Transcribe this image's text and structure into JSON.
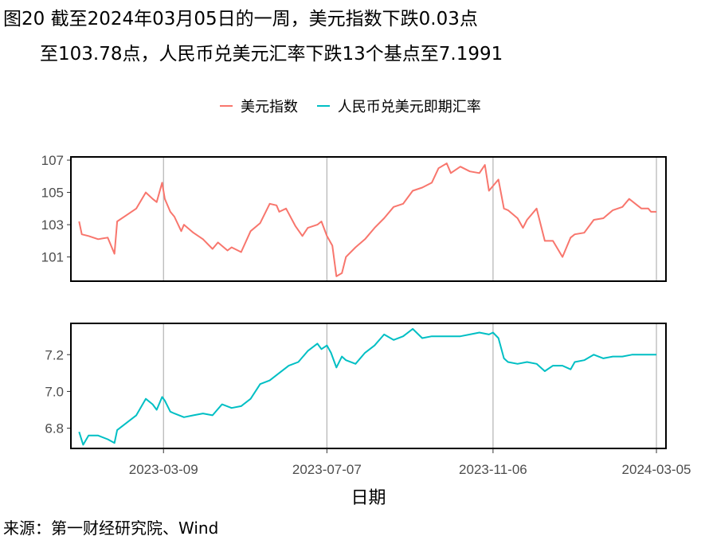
{
  "figure": {
    "title_line1": "图20  截至2024年03月05日的一周，美元指数下跌0.03点",
    "title_line2": "至103.78点，人民币兑美元汇率下跌13个基点至7.1991",
    "source": "来源：第一财经研究院、Wind"
  },
  "legend": [
    {
      "label": "美元指数",
      "color": "#F8766D"
    },
    {
      "label": "人民币兑美元即期汇率",
      "color": "#00BFC4"
    }
  ],
  "chart_data": [
    {
      "type": "line",
      "series": [
        {
          "name": "美元指数",
          "color": "#F8766D",
          "x": [
            "2023-01-06",
            "2023-01-08",
            "2023-01-13",
            "2023-01-20",
            "2023-01-27",
            "2023-02-01",
            "2023-02-03",
            "2023-02-10",
            "2023-02-17",
            "2023-02-24",
            "2023-03-01",
            "2023-03-04",
            "2023-03-08",
            "2023-03-10",
            "2023-03-14",
            "2023-03-17",
            "2023-03-22",
            "2023-03-24",
            "2023-03-31",
            "2023-04-07",
            "2023-04-14",
            "2023-04-18",
            "2023-04-25",
            "2023-04-28",
            "2023-05-05",
            "2023-05-12",
            "2023-05-19",
            "2023-05-26",
            "2023-05-31",
            "2023-06-02",
            "2023-06-07",
            "2023-06-14",
            "2023-06-19",
            "2023-06-23",
            "2023-06-30",
            "2023-07-03",
            "2023-07-07",
            "2023-07-11",
            "2023-07-14",
            "2023-07-18",
            "2023-07-21",
            "2023-07-28",
            "2023-08-04",
            "2023-08-11",
            "2023-08-18",
            "2023-08-25",
            "2023-09-01",
            "2023-09-08",
            "2023-09-15",
            "2023-09-22",
            "2023-09-27",
            "2023-10-03",
            "2023-10-06",
            "2023-10-13",
            "2023-10-20",
            "2023-10-27",
            "2023-10-31",
            "2023-11-03",
            "2023-11-10",
            "2023-11-14",
            "2023-11-17",
            "2023-11-24",
            "2023-11-28",
            "2023-12-01",
            "2023-12-08",
            "2023-12-14",
            "2023-12-20",
            "2023-12-27",
            "2024-01-02",
            "2024-01-05",
            "2024-01-12",
            "2024-01-19",
            "2024-01-26",
            "2024-02-02",
            "2024-02-09",
            "2024-02-14",
            "2024-02-20",
            "2024-02-23",
            "2024-02-28",
            "2024-03-01",
            "2024-03-05"
          ],
          "y": [
            103.2,
            102.4,
            102.3,
            102.1,
            102.2,
            101.2,
            103.2,
            103.6,
            104.0,
            105.0,
            104.6,
            104.4,
            105.6,
            104.6,
            103.8,
            103.5,
            102.6,
            103.0,
            102.5,
            102.1,
            101.5,
            101.9,
            101.4,
            101.6,
            101.3,
            102.6,
            103.1,
            104.3,
            104.2,
            103.8,
            104.0,
            102.9,
            102.3,
            102.8,
            103.0,
            103.2,
            102.3,
            101.7,
            99.8,
            100.0,
            101.0,
            101.6,
            102.1,
            102.8,
            103.4,
            104.1,
            104.3,
            105.1,
            105.3,
            105.6,
            106.5,
            106.8,
            106.2,
            106.6,
            106.3,
            106.2,
            106.7,
            105.1,
            105.8,
            104.0,
            103.9,
            103.4,
            102.8,
            103.3,
            104.0,
            102.0,
            102.0,
            101.0,
            102.2,
            102.4,
            102.5,
            103.3,
            103.4,
            103.9,
            104.1,
            104.6,
            104.2,
            104.0,
            104.0,
            103.8,
            103.8
          ]
        }
      ],
      "ylim": [
        99.5,
        107.2
      ],
      "yticks": [
        101,
        103,
        105,
        107
      ]
    },
    {
      "type": "line",
      "series": [
        {
          "name": "人民币兑美元即期汇率",
          "color": "#00BFC4",
          "x": [
            "2023-01-06",
            "2023-01-09",
            "2023-01-13",
            "2023-01-20",
            "2023-01-27",
            "2023-02-01",
            "2023-02-03",
            "2023-02-10",
            "2023-02-17",
            "2023-02-24",
            "2023-03-01",
            "2023-03-04",
            "2023-03-08",
            "2023-03-10",
            "2023-03-14",
            "2023-03-17",
            "2023-03-24",
            "2023-03-31",
            "2023-04-07",
            "2023-04-14",
            "2023-04-21",
            "2023-04-28",
            "2023-05-05",
            "2023-05-12",
            "2023-05-19",
            "2023-05-26",
            "2023-06-02",
            "2023-06-09",
            "2023-06-16",
            "2023-06-23",
            "2023-06-30",
            "2023-07-03",
            "2023-07-07",
            "2023-07-10",
            "2023-07-14",
            "2023-07-18",
            "2023-07-21",
            "2023-07-28",
            "2023-08-04",
            "2023-08-11",
            "2023-08-18",
            "2023-08-25",
            "2023-09-01",
            "2023-09-08",
            "2023-09-15",
            "2023-09-22",
            "2023-09-29",
            "2023-10-06",
            "2023-10-13",
            "2023-10-20",
            "2023-10-27",
            "2023-11-03",
            "2023-11-06",
            "2023-11-10",
            "2023-11-14",
            "2023-11-17",
            "2023-11-24",
            "2023-12-01",
            "2023-12-08",
            "2023-12-14",
            "2023-12-20",
            "2023-12-27",
            "2024-01-02",
            "2024-01-05",
            "2024-01-12",
            "2024-01-19",
            "2024-01-26",
            "2024-02-02",
            "2024-02-09",
            "2024-02-16",
            "2024-02-23",
            "2024-03-01",
            "2024-03-05"
          ],
          "y": [
            6.78,
            6.71,
            6.76,
            6.76,
            6.74,
            6.72,
            6.79,
            6.83,
            6.87,
            6.96,
            6.93,
            6.9,
            6.97,
            6.95,
            6.89,
            6.88,
            6.86,
            6.87,
            6.88,
            6.87,
            6.93,
            6.91,
            6.92,
            6.96,
            7.04,
            7.06,
            7.1,
            7.14,
            7.16,
            7.22,
            7.26,
            7.23,
            7.25,
            7.21,
            7.13,
            7.19,
            7.17,
            7.15,
            7.21,
            7.25,
            7.31,
            7.28,
            7.3,
            7.34,
            7.29,
            7.3,
            7.3,
            7.3,
            7.3,
            7.31,
            7.32,
            7.31,
            7.32,
            7.29,
            7.18,
            7.16,
            7.15,
            7.16,
            7.15,
            7.11,
            7.14,
            7.14,
            7.12,
            7.16,
            7.17,
            7.2,
            7.18,
            7.19,
            7.19,
            7.2,
            7.2,
            7.2,
            7.2
          ]
        }
      ],
      "ylim": [
        6.69,
        7.37
      ],
      "yticks": [
        6.8,
        7.0,
        7.2
      ]
    }
  ],
  "x_axis": {
    "xlim": [
      "2022-12-31",
      "2024-03-12"
    ],
    "ticks": [
      "2023-03-09",
      "2023-07-07",
      "2023-11-06",
      "2024-03-05"
    ],
    "label": "日期"
  }
}
